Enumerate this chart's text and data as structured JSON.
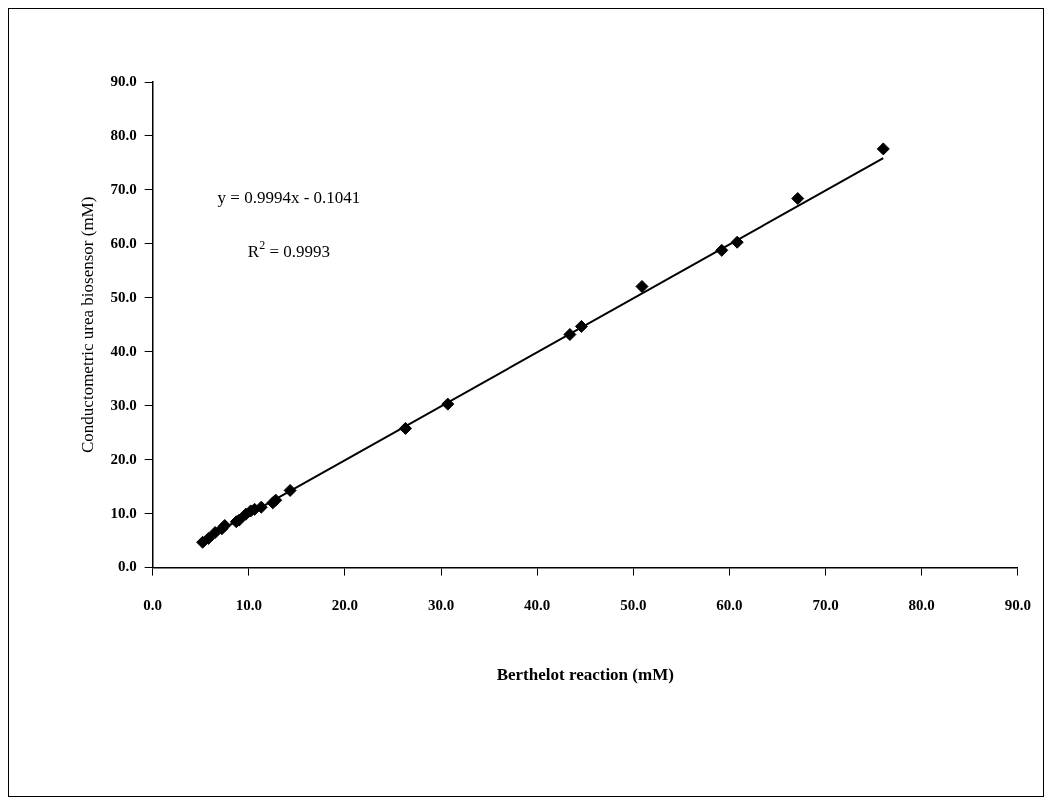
{
  "chart_data": {
    "type": "scatter",
    "xlabel": "Berthelot reaction (mM)",
    "ylabel": "Conductometric urea biosensor (mM)",
    "xlim": [
      0,
      90
    ],
    "xticks": [
      {
        "value": 0,
        "label": "0.0"
      },
      {
        "value": 10,
        "label": "10.0"
      },
      {
        "value": 20,
        "label": "20.0"
      },
      {
        "value": 30,
        "label": "30.0"
      },
      {
        "value": 40,
        "label": "40.0"
      },
      {
        "value": 50,
        "label": "50.0"
      },
      {
        "value": 60,
        "label": "60.0"
      },
      {
        "value": 70,
        "label": "70.0"
      },
      {
        "value": 80,
        "label": "80.0"
      },
      {
        "value": 90,
        "label": "90.0"
      }
    ],
    "ylim": [
      0,
      90
    ],
    "yticks": [
      {
        "value": 0,
        "label": "0.0"
      },
      {
        "value": 10,
        "label": "10.0"
      },
      {
        "value": 20,
        "label": "20.0"
      },
      {
        "value": 30,
        "label": "30.0"
      },
      {
        "value": 40,
        "label": "40.0"
      },
      {
        "value": 50,
        "label": "50.0"
      },
      {
        "value": 60,
        "label": "60.0"
      },
      {
        "value": 70,
        "label": "70.0"
      },
      {
        "value": 80,
        "label": "80.0"
      },
      {
        "value": 90,
        "label": "90.0"
      }
    ],
    "grid": false,
    "legend": false,
    "marker": "diamond",
    "series": [
      {
        "color": "#000000",
        "x": [
          5.2,
          5.8,
          6.5,
          7.2,
          7.5,
          8.7,
          9.0,
          9.7,
          10.2,
          10.6,
          11.3,
          12.5,
          12.8,
          14.3,
          26.3,
          30.7,
          43.4,
          44.6,
          50.9,
          59.2,
          60.8,
          67.1,
          76.0
        ],
        "values": [
          4.7,
          5.4,
          6.5,
          7.2,
          7.8,
          8.5,
          8.8,
          9.9,
          10.5,
          10.8,
          11.2,
          12.0,
          12.5,
          14.3,
          25.8,
          30.3,
          43.2,
          44.7,
          52.1,
          58.8,
          60.3,
          68.4,
          77.6
        ]
      },
      {
        "type": "line",
        "color": "#000000",
        "marker": "none",
        "x": [
          5.2,
          76.0
        ],
        "values": [
          5.1,
          75.9
        ]
      }
    ],
    "annotations": [
      "y = 0.9994x - 0.1041",
      "R$^{2}$ = 0.9993"
    ]
  }
}
